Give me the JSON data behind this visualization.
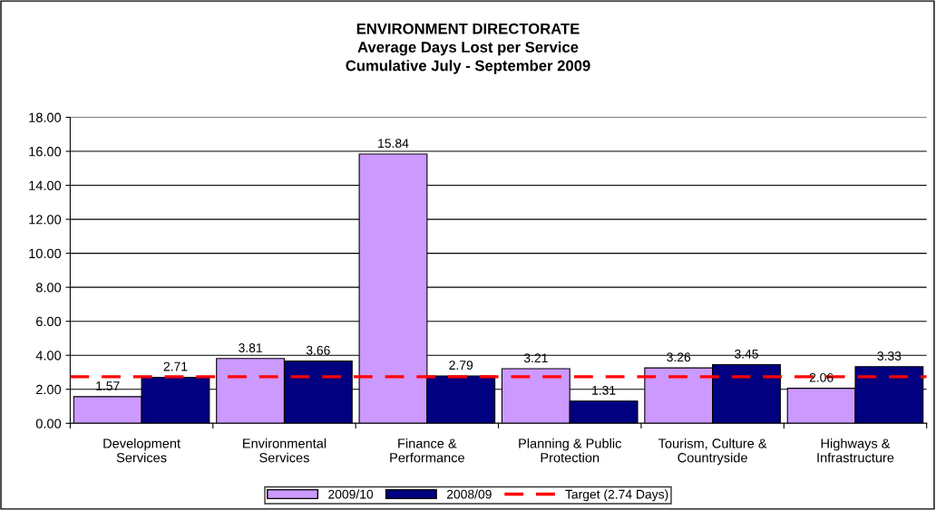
{
  "chart_data": {
    "type": "bar",
    "title": "ENVIRONMENT DIRECTORATE\nAverage Days Lost per Service\nCumulative July - September 2009",
    "categories": [
      "Development\nServices",
      "Environmental\nServices",
      "Finance &\nPerformance",
      "Planning & Public\nProtection",
      "Tourism, Culture &\nCountryside",
      "Highways &\nInfrastructure"
    ],
    "series": [
      {
        "name": "2009/10",
        "color": "#cc99ff",
        "values": [
          1.57,
          3.81,
          15.84,
          3.21,
          3.26,
          2.06
        ]
      },
      {
        "name": "2008/09",
        "color": "#000080",
        "values": [
          2.71,
          3.66,
          2.79,
          1.31,
          3.45,
          3.33
        ]
      }
    ],
    "ref_lines": [
      {
        "axis": "y",
        "value": 2.74,
        "label": "Target (2.74 Days)",
        "color": "#ff0000",
        "line_style": "dashed"
      }
    ],
    "ylim": [
      0,
      18
    ],
    "yticks": [
      {
        "value": 0,
        "label": "0.00"
      },
      {
        "value": 2,
        "label": "2.00"
      },
      {
        "value": 4,
        "label": "4.00"
      },
      {
        "value": 6,
        "label": "6.00"
      },
      {
        "value": 8,
        "label": "8.00"
      },
      {
        "value": 10,
        "label": "10.00"
      },
      {
        "value": 12,
        "label": "12.00"
      },
      {
        "value": 14,
        "label": "14.00"
      },
      {
        "value": 16,
        "label": "16.00"
      },
      {
        "value": 18,
        "label": "18.00"
      }
    ],
    "grid": "y",
    "legend": "bottom",
    "data_labels": true
  }
}
